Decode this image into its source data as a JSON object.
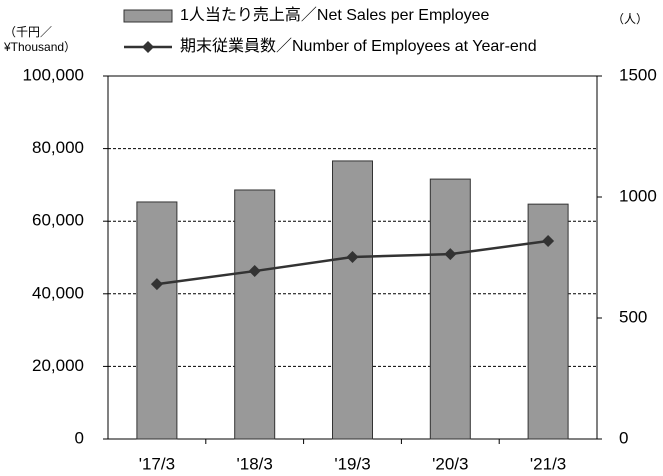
{
  "chart_data": {
    "type": "bar_line",
    "y_label": [
      "（千円／",
      "¥Thousand）"
    ],
    "y2_label": "（人）",
    "categories": [
      "'17/3",
      "'18/3",
      "'19/3",
      "'20/3",
      "'21/3"
    ],
    "series": [
      {
        "name": "1人当たり売上高／Net Sales per Employee",
        "type": "bar",
        "color": "#999999",
        "values": [
          65300,
          68600,
          76600,
          71600,
          64700
        ]
      },
      {
        "name": "期末従業員数／Number of Employees at Year-end",
        "type": "line",
        "axis": "y2",
        "color": "#333333",
        "values": [
          640,
          694,
          752,
          764,
          818
        ]
      }
    ],
    "ylim": [
      0,
      100000
    ],
    "yticks": [
      {
        "value": 0,
        "label": "0"
      },
      {
        "value": 20000,
        "label": "20,000"
      },
      {
        "value": 40000,
        "label": "40,000"
      },
      {
        "value": 60000,
        "label": "60,000"
      },
      {
        "value": 80000,
        "label": "80,000"
      },
      {
        "value": 100000,
        "label": "100,000"
      }
    ],
    "y2lim": [
      0,
      1500
    ],
    "y2ticks": [
      0,
      500,
      1000,
      1500
    ],
    "grid": true
  }
}
